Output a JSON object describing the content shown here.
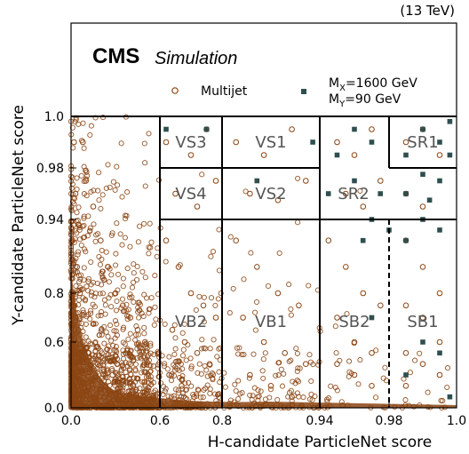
{
  "energy_label": "(13 TeV)",
  "experiment_label": "CMS",
  "experiment_sublabel": "Simulation",
  "chart_data": {
    "type": "scatter",
    "xlabel": "H-candidate ParticleNet score",
    "ylabel": "Y-candidate ParticleNet score",
    "x_ticks": [
      "0.0",
      "0.6",
      "0.8",
      "0.94",
      "0.98",
      "1.0"
    ],
    "y_ticks": [
      "0.0",
      "0.6",
      "0.8",
      "0.94",
      "0.98",
      "1.0"
    ],
    "xlim": [
      0.0,
      1.0
    ],
    "ylim": [
      0.0,
      1.0
    ],
    "axis_scale": "piecewise (non-linear)",
    "legend": {
      "placement": "top",
      "entries": [
        {
          "label": "Multijet",
          "marker": "open-circle",
          "color": "#8b4513"
        },
        {
          "label_line1_main": "M",
          "label_line1_sub": "X",
          "label_line1_rest": "=1600 GeV",
          "label_line2_main": "M",
          "label_line2_sub": "Y",
          "label_line2_rest": "=90 GeV",
          "marker": "filled-square",
          "color": "#2f4f4f"
        }
      ]
    },
    "regions": [
      {
        "name": "VS3",
        "x_range": [
          0.6,
          0.8
        ],
        "y_range": [
          0.98,
          1.0
        ]
      },
      {
        "name": "VS1",
        "x_range": [
          0.8,
          0.94
        ],
        "y_range": [
          0.98,
          1.0
        ]
      },
      {
        "name": "VS4",
        "x_range": [
          0.6,
          0.8
        ],
        "y_range": [
          0.94,
          0.98
        ]
      },
      {
        "name": "VS2",
        "x_range": [
          0.8,
          0.94
        ],
        "y_range": [
          0.94,
          0.98
        ]
      },
      {
        "name": "SR2",
        "x_range": [
          0.94,
          1.0
        ],
        "y_range": [
          0.94,
          0.98
        ]
      },
      {
        "name": "SR1",
        "x_range": [
          0.98,
          1.0
        ],
        "y_range": [
          0.98,
          1.0
        ]
      },
      {
        "name": "VB2",
        "x_range": [
          0.6,
          0.8
        ],
        "y_range": [
          0.0,
          0.94
        ]
      },
      {
        "name": "VB1",
        "x_range": [
          0.8,
          0.94
        ],
        "y_range": [
          0.0,
          0.94
        ]
      },
      {
        "name": "SB2",
        "x_range": [
          0.94,
          0.98
        ],
        "y_range": [
          0.0,
          0.94
        ]
      },
      {
        "name": "SB1",
        "x_range": [
          0.98,
          1.0
        ],
        "y_range": [
          0.0,
          0.94
        ]
      }
    ],
    "series": [
      {
        "name": "Multijet",
        "color": "#8b4513",
        "description_points": "dense concentration at low x and low y; sparse elsewhere",
        "points": [
          [
            0.02,
            0.99
          ],
          [
            0.03,
            0.96
          ],
          [
            0.05,
            0.93
          ],
          [
            0.01,
            0.9
          ],
          [
            0.04,
            0.85
          ],
          [
            0.06,
            0.8
          ],
          [
            0.02,
            0.75
          ],
          [
            0.03,
            0.7
          ],
          [
            0.05,
            0.65
          ],
          [
            0.08,
            0.6
          ],
          [
            0.1,
            0.55
          ],
          [
            0.12,
            0.5
          ],
          [
            0.15,
            0.45
          ],
          [
            0.18,
            0.4
          ],
          [
            0.22,
            0.35
          ],
          [
            0.28,
            0.3
          ],
          [
            0.35,
            0.25
          ],
          [
            0.42,
            0.2
          ],
          [
            0.5,
            0.15
          ],
          [
            0.55,
            0.1
          ],
          [
            0.2,
            0.9
          ],
          [
            0.25,
            0.85
          ],
          [
            0.3,
            0.8
          ],
          [
            0.35,
            0.75
          ],
          [
            0.4,
            0.7
          ],
          [
            0.45,
            0.65
          ],
          [
            0.5,
            0.6
          ],
          [
            0.15,
            0.95
          ],
          [
            0.1,
            0.97
          ],
          [
            0.08,
            0.99
          ],
          [
            0.62,
            0.99
          ],
          [
            0.7,
            0.985
          ],
          [
            0.75,
            0.995
          ],
          [
            0.65,
            0.96
          ],
          [
            0.72,
            0.95
          ],
          [
            0.78,
            0.97
          ],
          [
            0.82,
            0.99
          ],
          [
            0.86,
            0.985
          ],
          [
            0.9,
            0.995
          ],
          [
            0.84,
            0.96
          ],
          [
            0.88,
            0.955
          ],
          [
            0.92,
            0.97
          ],
          [
            0.95,
            0.99
          ],
          [
            0.96,
            0.985
          ],
          [
            0.97,
            0.995
          ],
          [
            0.955,
            0.96
          ],
          [
            0.965,
            0.95
          ],
          [
            0.975,
            0.97
          ],
          [
            0.985,
            0.99
          ],
          [
            0.99,
            0.995
          ],
          [
            0.995,
            0.985
          ],
          [
            0.985,
            0.96
          ],
          [
            0.99,
            0.95
          ],
          [
            0.62,
            0.9
          ],
          [
            0.66,
            0.85
          ],
          [
            0.7,
            0.8
          ],
          [
            0.74,
            0.75
          ],
          [
            0.78,
            0.7
          ],
          [
            0.64,
            0.65
          ],
          [
            0.68,
            0.6
          ],
          [
            0.72,
            0.5
          ],
          [
            0.76,
            0.4
          ],
          [
            0.63,
            0.3
          ],
          [
            0.67,
            0.2
          ],
          [
            0.71,
            0.1
          ],
          [
            0.82,
            0.9
          ],
          [
            0.85,
            0.85
          ],
          [
            0.88,
            0.8
          ],
          [
            0.91,
            0.75
          ],
          [
            0.83,
            0.7
          ],
          [
            0.86,
            0.6
          ],
          [
            0.89,
            0.5
          ],
          [
            0.92,
            0.4
          ],
          [
            0.84,
            0.3
          ],
          [
            0.87,
            0.2
          ],
          [
            0.9,
            0.1
          ],
          [
            0.945,
            0.9
          ],
          [
            0.955,
            0.85
          ],
          [
            0.965,
            0.8
          ],
          [
            0.975,
            0.75
          ],
          [
            0.95,
            0.7
          ],
          [
            0.96,
            0.6
          ],
          [
            0.97,
            0.5
          ],
          [
            0.95,
            0.4
          ],
          [
            0.96,
            0.3
          ],
          [
            0.97,
            0.2
          ],
          [
            0.985,
            0.9
          ],
          [
            0.99,
            0.85
          ],
          [
            0.995,
            0.8
          ],
          [
            0.985,
            0.75
          ],
          [
            0.99,
            0.7
          ],
          [
            0.995,
            0.6
          ],
          [
            0.985,
            0.5
          ],
          [
            0.99,
            0.4
          ],
          [
            0.995,
            0.3
          ],
          [
            0.985,
            0.2
          ]
        ]
      },
      {
        "name": "MX=1600 GeV, MY=90 GeV",
        "color": "#2f4f4f",
        "description_points": "concentrated at high x and high y",
        "points": [
          [
            0.99,
            0.995
          ],
          [
            0.995,
            0.99
          ],
          [
            0.985,
            0.985
          ],
          [
            0.998,
            0.998
          ],
          [
            0.99,
            0.975
          ],
          [
            0.995,
            0.97
          ],
          [
            0.985,
            0.96
          ],
          [
            0.97,
            0.99
          ],
          [
            0.96,
            0.995
          ],
          [
            0.95,
            0.985
          ],
          [
            0.975,
            0.96
          ],
          [
            0.99,
            0.94
          ],
          [
            0.995,
            0.92
          ],
          [
            0.985,
            0.9
          ],
          [
            0.97,
            0.94
          ],
          [
            0.98,
            0.92
          ],
          [
            0.96,
            0.97
          ],
          [
            0.998,
            0.985
          ],
          [
            0.992,
            0.955
          ],
          [
            0.965,
            0.9
          ],
          [
            0.945,
            0.96
          ],
          [
            0.93,
            0.99
          ],
          [
            0.85,
            0.97
          ],
          [
            0.75,
            0.995
          ],
          [
            0.62,
            0.995
          ],
          [
            0.99,
            0.6
          ],
          [
            0.995,
            0.5
          ],
          [
            0.985,
            0.3
          ],
          [
            0.998,
            0.1
          ],
          [
            0.97,
            0.7
          ]
        ]
      }
    ]
  }
}
